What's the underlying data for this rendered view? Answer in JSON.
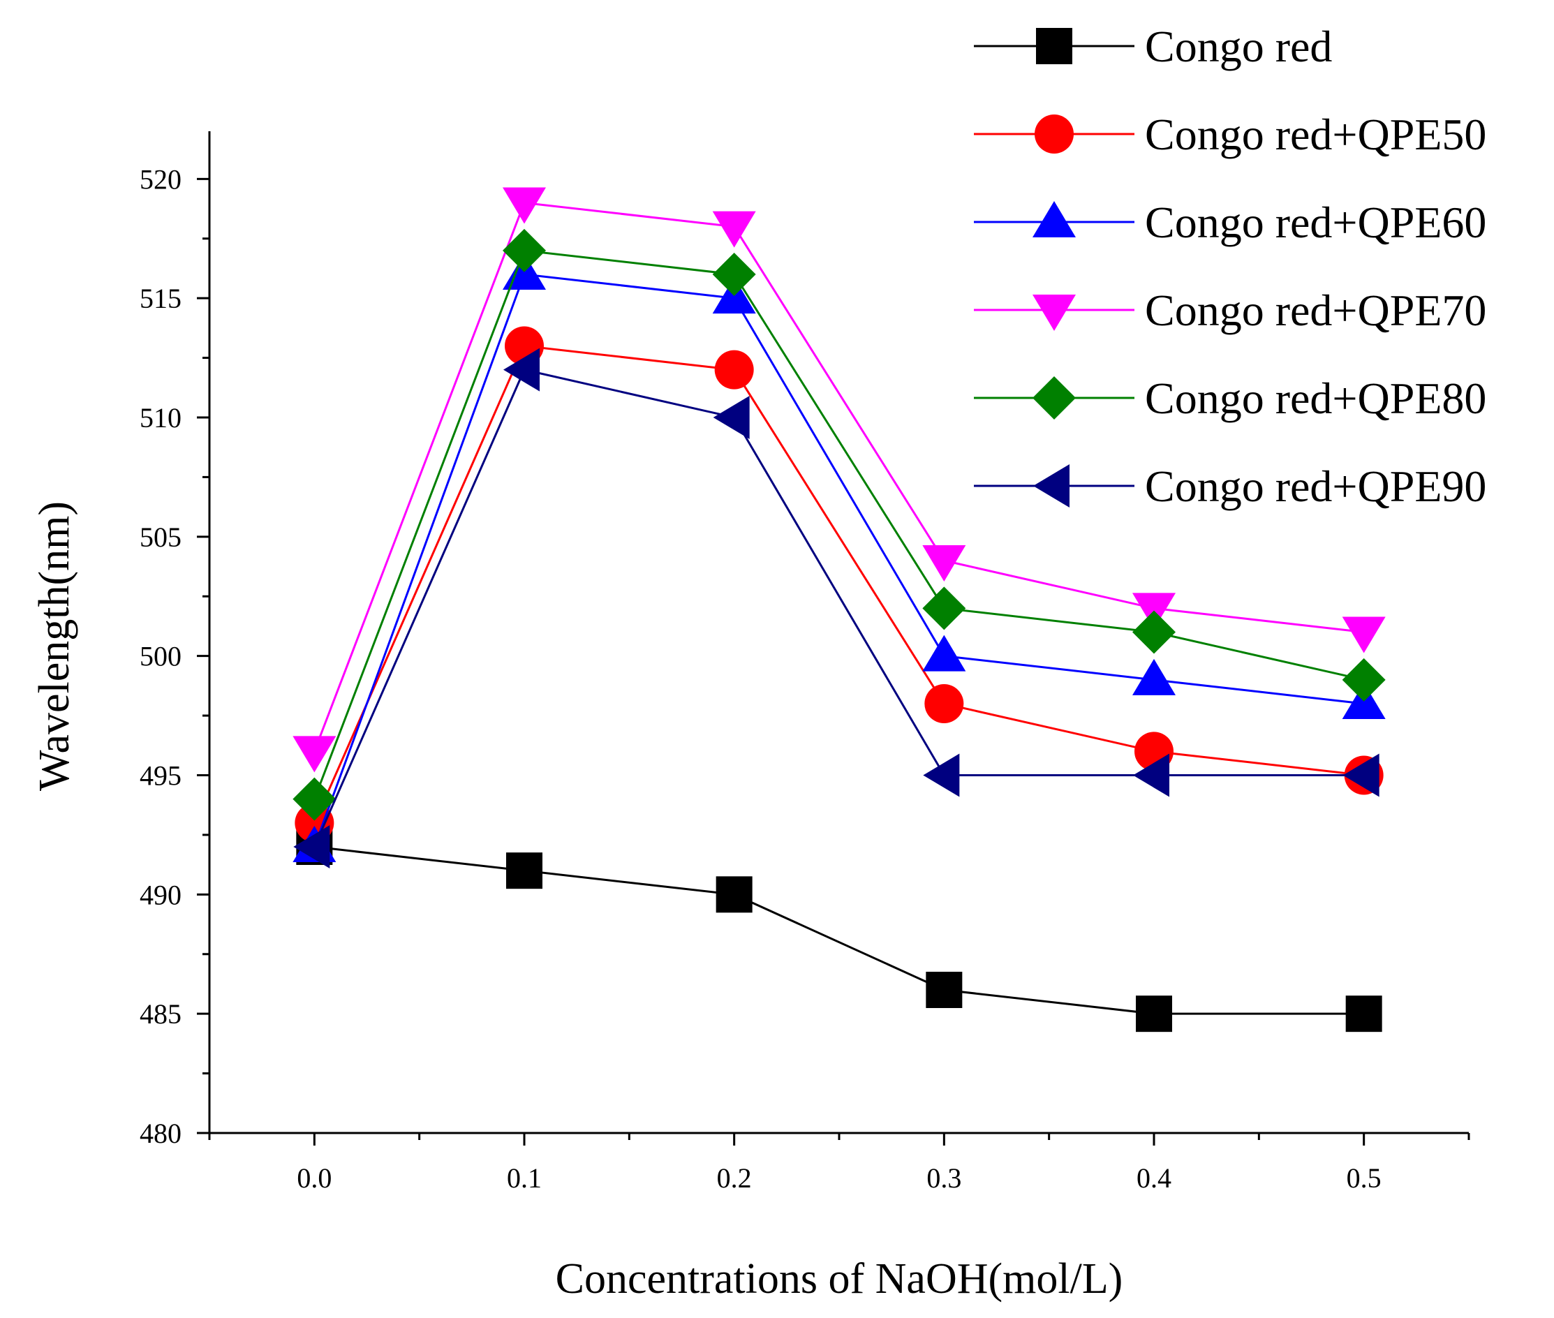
{
  "chart_data": {
    "type": "line",
    "title": "",
    "xlabel": "Concentrations of NaOH(mol/L)",
    "ylabel": "Wavelength(nm)",
    "xlim": [
      -0.05,
      0.55
    ],
    "ylim": [
      480,
      522
    ],
    "x": [
      0.0,
      0.1,
      0.2,
      0.3,
      0.4,
      0.5
    ],
    "x_ticks": [
      "0.0",
      "0.1",
      "0.2",
      "0.3",
      "0.4",
      "0.5"
    ],
    "y_ticks": [
      "480",
      "485",
      "490",
      "495",
      "500",
      "505",
      "510",
      "515",
      "520"
    ],
    "grid": false,
    "legend_position": "top-right",
    "series": [
      {
        "name": "Congo red",
        "color": "#000000",
        "marker": "square",
        "values": [
          492,
          491,
          490,
          486,
          485,
          485
        ]
      },
      {
        "name": "Congo red+QPE50",
        "color": "#ff0000",
        "marker": "circle",
        "values": [
          493,
          513,
          512,
          498,
          496,
          495
        ]
      },
      {
        "name": "Congo red+QPE60",
        "color": "#0000ff",
        "marker": "triangle-up",
        "values": [
          492,
          516,
          515,
          500,
          499,
          498
        ]
      },
      {
        "name": "Congo red+QPE70",
        "color": "#ff00ff",
        "marker": "triangle-down",
        "values": [
          496,
          519,
          518,
          504,
          502,
          501
        ]
      },
      {
        "name": "Congo red+QPE80",
        "color": "#008000",
        "marker": "diamond",
        "values": [
          494,
          517,
          516,
          502,
          501,
          499
        ]
      },
      {
        "name": "Congo red+QPE90",
        "color": "#000080",
        "marker": "triangle-left",
        "values": [
          492,
          512,
          510,
          495,
          495,
          495
        ]
      }
    ]
  }
}
